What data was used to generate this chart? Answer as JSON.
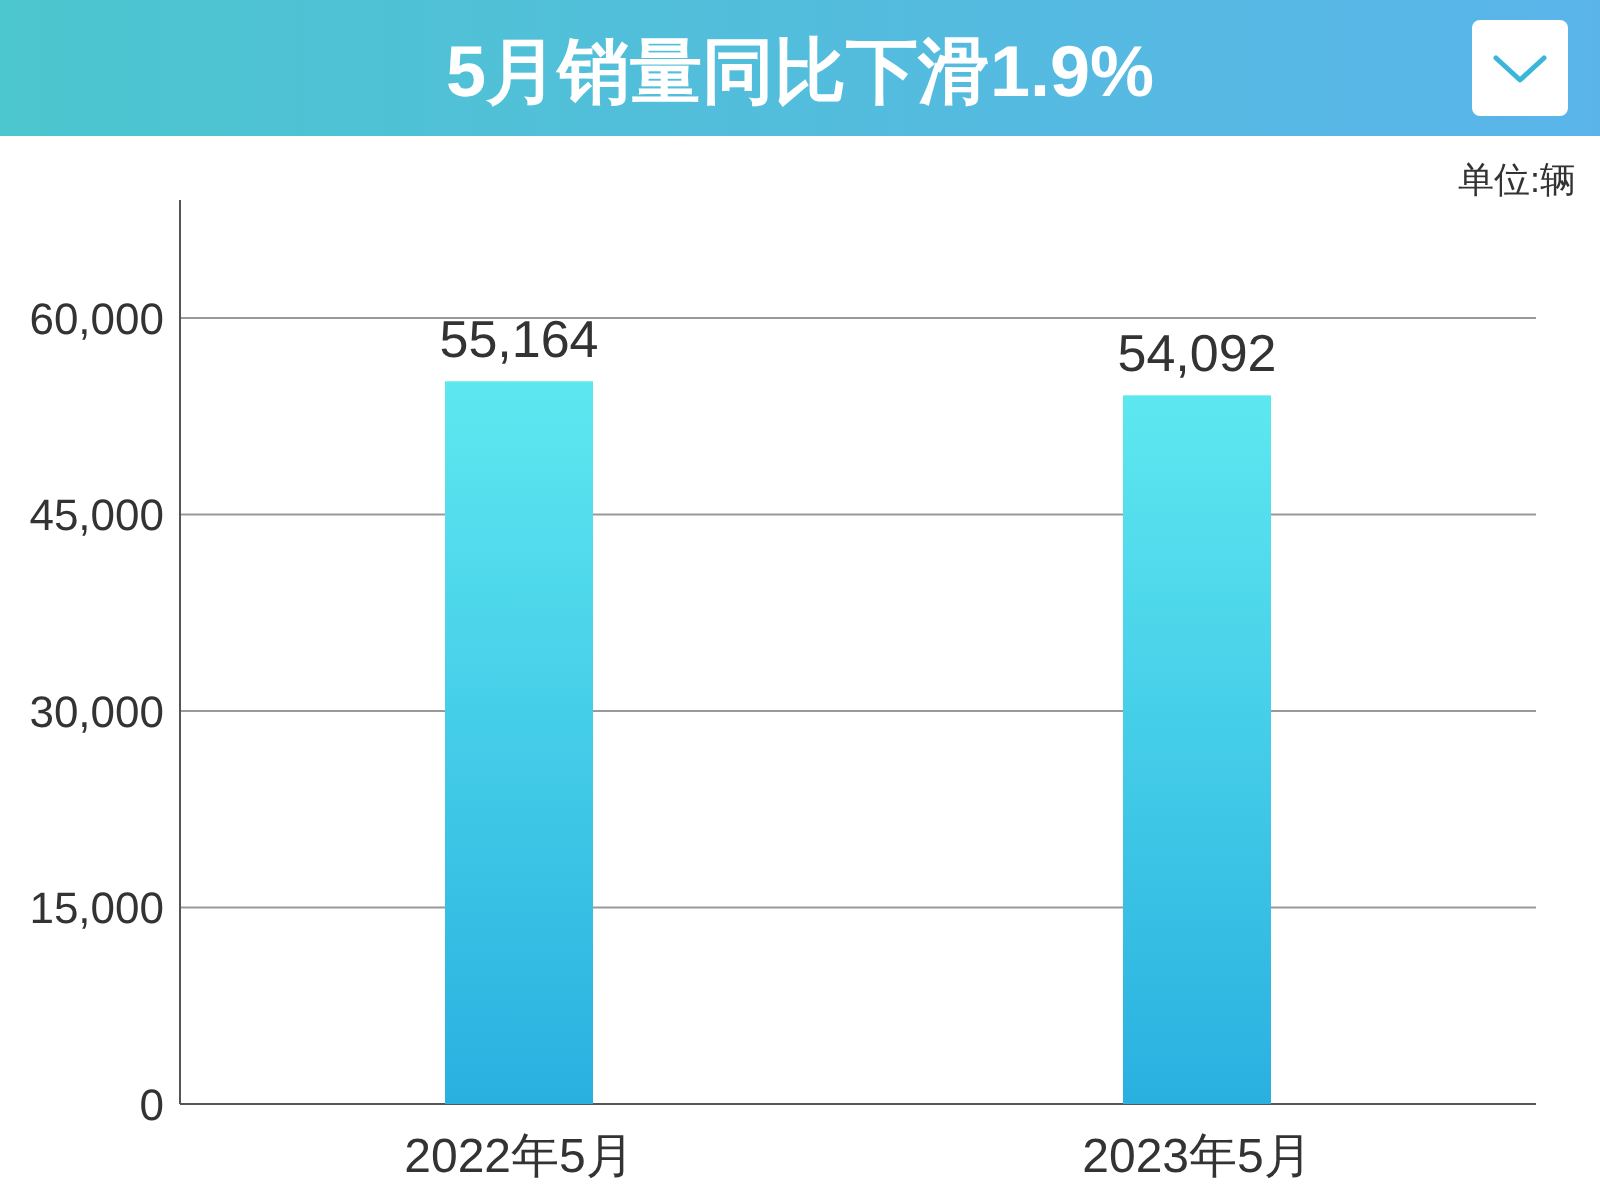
{
  "chart_data": {
    "type": "bar",
    "title": "5月销量同比下滑1.9%",
    "categories": [
      "2022年5月",
      "2023年5月"
    ],
    "values": [
      55164,
      54092
    ],
    "value_labels": [
      "55,164",
      "54,092"
    ],
    "color": "#2ab0e0",
    "ylim": [
      0,
      69000
    ],
    "yticks": [
      0,
      {
        "value": 15000,
        "label": "15,000"
      },
      {
        "value": 30000,
        "label": "30,000"
      },
      {
        "value": 45000,
        "label": "45,000"
      },
      {
        "value": 60000,
        "label": "60,000"
      }
    ],
    "grid": "y",
    "annotations": [
      "单位:辆"
    ]
  }
}
